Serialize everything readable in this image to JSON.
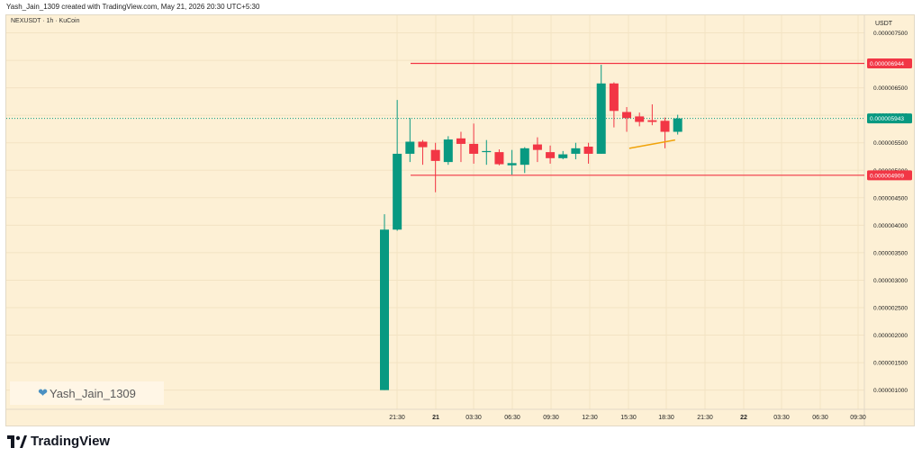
{
  "header": {
    "attribution": "Yash_Jain_1309 created with TradingView.com, May 21, 2026 20:30 UTC+5:30"
  },
  "symbol": {
    "label": "NEXUSDT · 1h · KuCoin"
  },
  "watermark": {
    "text": "Yash_Jain_1309",
    "icon": "heart-icon",
    "color": "#4a90c2"
  },
  "footer": {
    "brand": "TradingView",
    "icon": "tradingview-logo-icon"
  },
  "chart_data": {
    "type": "candlestick",
    "currency": "USDT",
    "y_ticks": [
      "0.000007500",
      "0.000007000",
      "0.000006500",
      "0.000006000",
      "0.000005500",
      "0.000005000",
      "0.000004500",
      "0.000004000",
      "0.000003500",
      "0.000003000",
      "0.000002500",
      "0.000002000",
      "0.000001500",
      "0.000001000"
    ],
    "x_ticks": [
      "21:30",
      "21",
      "03:30",
      "06:30",
      "09:30",
      "12:30",
      "15:30",
      "18:30",
      "21:30",
      "22",
      "03:30",
      "06:30",
      "09:30"
    ],
    "ylim": [
      6.5e-07,
      7.82e-06
    ],
    "colors": {
      "up": "#089981",
      "down": "#f23645",
      "price_line": "#089981",
      "level_line": "#f23645",
      "trend": "#f0a30a"
    },
    "candles": [
      {
        "o": 1e-06,
        "h": 4.2e-06,
        "l": 1e-06,
        "c": 3.92e-06
      },
      {
        "o": 3.92e-06,
        "h": 6.28e-06,
        "l": 3.9e-06,
        "c": 5.3e-06
      },
      {
        "o": 5.3e-06,
        "h": 5.95e-06,
        "l": 5.15e-06,
        "c": 5.52e-06
      },
      {
        "o": 5.52e-06,
        "h": 5.55e-06,
        "l": 5.1e-06,
        "c": 5.42e-06
      },
      {
        "o": 5.37e-06,
        "h": 5.5e-06,
        "l": 4.6e-06,
        "c": 5.17e-06
      },
      {
        "o": 5.15e-06,
        "h": 5.62e-06,
        "l": 5.1e-06,
        "c": 5.56e-06
      },
      {
        "o": 5.58e-06,
        "h": 5.7e-06,
        "l": 5.15e-06,
        "c": 5.48e-06
      },
      {
        "o": 5.48e-06,
        "h": 5.85e-06,
        "l": 5.12e-06,
        "c": 5.3e-06
      },
      {
        "o": 5.33e-06,
        "h": 5.55e-06,
        "l": 5.1e-06,
        "c": 5.35e-06
      },
      {
        "o": 5.33e-06,
        "h": 5.38e-06,
        "l": 5.09e-06,
        "c": 5.11e-06
      },
      {
        "o": 5.09e-06,
        "h": 5.37e-06,
        "l": 4.92e-06,
        "c": 5.13e-06
      },
      {
        "o": 5.1e-06,
        "h": 5.42e-06,
        "l": 4.95e-06,
        "c": 5.4e-06
      },
      {
        "o": 5.47e-06,
        "h": 5.6e-06,
        "l": 5.15e-06,
        "c": 5.37e-06
      },
      {
        "o": 5.33e-06,
        "h": 5.45e-06,
        "l": 5.12e-06,
        "c": 5.22e-06
      },
      {
        "o": 5.22e-06,
        "h": 5.35e-06,
        "l": 5.2e-06,
        "c": 5.29e-06
      },
      {
        "o": 5.3e-06,
        "h": 5.5e-06,
        "l": 5.2e-06,
        "c": 5.4e-06
      },
      {
        "o": 5.43e-06,
        "h": 5.5e-06,
        "l": 5.12e-06,
        "c": 5.3e-06
      },
      {
        "o": 5.3e-06,
        "h": 6.92e-06,
        "l": 5.3e-06,
        "c": 6.58e-06
      },
      {
        "o": 6.58e-06,
        "h": 6.6e-06,
        "l": 5.78e-06,
        "c": 6.08e-06
      },
      {
        "o": 6.06e-06,
        "h": 6.15e-06,
        "l": 5.7e-06,
        "c": 5.95e-06
      },
      {
        "o": 5.98e-06,
        "h": 6.05e-06,
        "l": 5.8e-06,
        "c": 5.88e-06
      },
      {
        "o": 5.91e-06,
        "h": 6.2e-06,
        "l": 5.82e-06,
        "c": 5.88e-06
      },
      {
        "o": 5.9e-06,
        "h": 5.96e-06,
        "l": 5.4e-06,
        "c": 5.7e-06
      },
      {
        "o": 5.7e-06,
        "h": 6.01e-06,
        "l": 5.65e-06,
        "c": 5.943e-06
      }
    ],
    "price_labels": [
      {
        "value": 6.944e-06,
        "text": "0.000006944",
        "color": "#f23645",
        "role": "resistance"
      },
      {
        "value": 5.943e-06,
        "text": "0.000005943",
        "color": "#089981",
        "role": "last"
      },
      {
        "value": 4.909e-06,
        "text": "0.000004909",
        "color": "#f23645",
        "role": "support"
      }
    ],
    "trendline": [
      {
        "bar": 19.2,
        "value": 5.4e-06
      },
      {
        "bar": 22.8,
        "value": 5.55e-06
      }
    ]
  }
}
